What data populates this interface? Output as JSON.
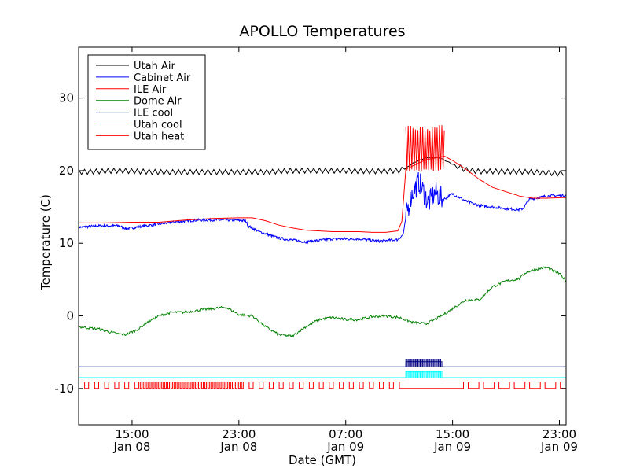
{
  "chart_data": {
    "type": "line",
    "title": "APOLLO Temperatures",
    "xlabel": "Date (GMT)",
    "ylabel": "Temperature (C)",
    "x_unit": "hours since Jan 08 00:00 GMT",
    "xlim": [
      11,
      47.5
    ],
    "ylim": [
      -15,
      37
    ],
    "yticks": [
      -10,
      0,
      10,
      20,
      30
    ],
    "xticks": [
      {
        "x": 15,
        "time": "15:00",
        "date": "Jan 08"
      },
      {
        "x": 23,
        "time": "23:00",
        "date": "Jan 08"
      },
      {
        "x": 31,
        "time": "07:00",
        "date": "Jan 09"
      },
      {
        "x": 39,
        "time": "15:00",
        "date": "Jan 09"
      },
      {
        "x": 47,
        "time": "23:00",
        "date": "Jan 09"
      }
    ],
    "grid": false,
    "legend_position": "top-left",
    "series": [
      {
        "name": "Utah Air",
        "color": "#000000",
        "style": "sawtooth",
        "x": [
          11,
          14,
          17,
          20,
          23,
          25,
          27,
          29,
          31,
          33,
          35,
          35.5,
          36,
          37,
          38,
          39,
          40,
          41,
          43,
          45,
          47,
          47.5
        ],
        "y": [
          19.8,
          20.0,
          19.8,
          19.8,
          19.8,
          19.8,
          20.0,
          20.0,
          20.0,
          19.9,
          20.0,
          20.3,
          21.0,
          21.8,
          21.8,
          20.9,
          20.1,
          19.9,
          19.9,
          19.8,
          19.6,
          19.7
        ]
      },
      {
        "name": "Cabinet Air",
        "color": "#0000ff",
        "style": "noisy",
        "x": [
          11,
          12.5,
          14,
          14.6,
          16,
          18,
          20,
          22,
          23.5,
          23.7,
          24.5,
          26,
          28,
          30,
          32,
          33.5,
          34.9,
          35.3,
          35.6,
          36.0,
          36.5,
          37.2,
          37.7,
          38.3,
          39.0,
          40.0,
          41.0,
          42.0,
          43.0,
          44.0,
          44.3,
          44.7,
          46.0,
          47.5
        ],
        "y": [
          12.2,
          12.4,
          12.4,
          12.0,
          12.4,
          12.9,
          13.2,
          13.2,
          13.1,
          12.4,
          11.6,
          10.7,
          10.2,
          10.6,
          10.6,
          10.3,
          10.5,
          11.2,
          14.5,
          17.0,
          18.5,
          15.5,
          17.0,
          16.0,
          16.8,
          15.8,
          15.2,
          15.0,
          14.8,
          14.6,
          14.8,
          16.0,
          16.5,
          16.6
        ]
      },
      {
        "name": "ILE Air",
        "color": "#ff0000",
        "style": "smooth",
        "x": [
          11,
          13,
          15,
          17,
          19,
          21,
          23,
          24,
          25,
          26,
          27,
          28,
          30,
          32,
          33,
          34,
          34.9,
          35.2,
          35.5,
          37.0,
          38.4,
          39.0,
          40.0,
          41.0,
          42.0,
          43.0,
          44.0,
          45.0,
          46.0,
          47.5
        ],
        "y": [
          12.8,
          12.8,
          12.9,
          12.9,
          13.2,
          13.4,
          13.5,
          13.5,
          13.1,
          12.5,
          12.1,
          11.8,
          11.6,
          11.6,
          11.5,
          11.5,
          11.7,
          13.0,
          20.2,
          21.5,
          22.0,
          21.4,
          20.2,
          18.8,
          17.7,
          17.1,
          16.5,
          16.2,
          16.2,
          16.3
        ]
      },
      {
        "name": "Dome Air",
        "color": "#008000",
        "style": "noisy",
        "x": [
          11,
          12.5,
          13.5,
          14,
          14.5,
          15.5,
          16,
          17,
          18,
          19,
          20,
          21,
          22,
          23,
          24,
          25,
          26,
          27,
          28,
          29,
          30,
          31,
          32,
          33,
          34,
          35,
          36,
          37,
          38,
          39,
          40,
          41,
          42,
          43,
          44,
          44.5,
          45,
          46,
          47,
          47.5
        ],
        "y": [
          -1.5,
          -1.8,
          -2.3,
          -2.5,
          -2.6,
          -1.8,
          -1.0,
          0.0,
          0.5,
          0.5,
          0.8,
          1.0,
          1.2,
          0.2,
          0.0,
          -1.5,
          -2.6,
          -2.8,
          -1.5,
          -0.5,
          -0.2,
          -0.5,
          -0.5,
          -0.1,
          0.0,
          -0.2,
          -0.9,
          -1.1,
          -0.2,
          1.0,
          2.2,
          2.2,
          4.0,
          4.8,
          5.1,
          6.0,
          6.3,
          6.7,
          5.8,
          4.8
        ]
      },
      {
        "name": "ILE cool",
        "color": "#000080",
        "style": "step",
        "x": [
          11,
          35.5,
          35.5,
          38.2,
          38.2,
          47.5
        ],
        "y": [
          -7,
          -7,
          -6.3,
          -6.3,
          -7,
          -7
        ]
      },
      {
        "name": "Utah cool",
        "color": "#00ffff",
        "style": "step",
        "x": [
          11,
          35.5,
          35.5,
          38.2,
          38.2,
          47.5
        ],
        "y": [
          -8.5,
          -8.5,
          -7.7,
          -7.7,
          -8.5,
          -8.5
        ]
      },
      {
        "name": "Utah heat",
        "color": "#ff0000",
        "style": "pulse",
        "x": [
          11,
          47.5
        ],
        "y": [
          -10,
          -10
        ],
        "pulse_high": -9.1
      }
    ]
  }
}
